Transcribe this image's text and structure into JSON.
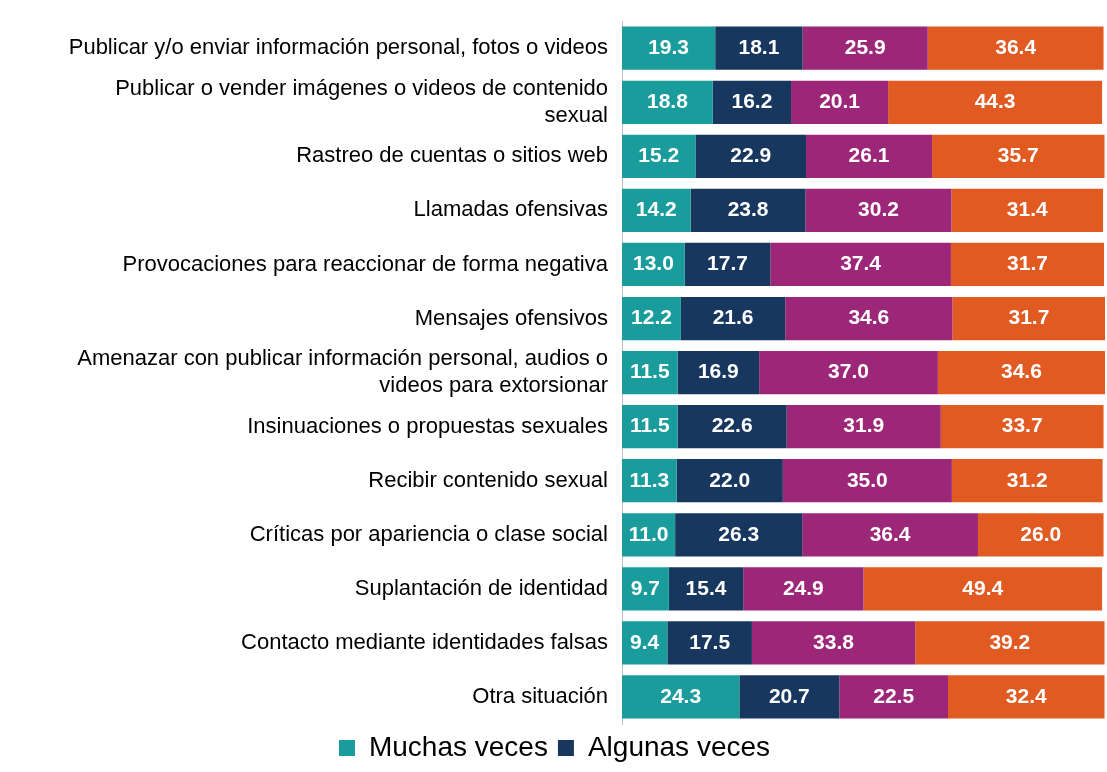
{
  "chart_data": {
    "type": "bar",
    "orientation": "horizontal",
    "stacked": true,
    "legend": "bottom",
    "grid": false,
    "xlim": [
      0,
      100
    ],
    "categories": [
      "Publicar y/o enviar información personal, fotos o videos",
      "Publicar o vender imágenes o videos de contenido sexual",
      "Rastreo de cuentas o sitios web",
      "Llamadas ofensivas",
      "Provocaciones para reaccionar de forma negativa",
      "Mensajes ofensivos",
      "Amenazar con publicar información personal, audios o videos para extorsionar",
      "Insinuaciones o propuestas sexuales",
      "Recibir contenido sexual",
      "Críticas por apariencia o clase social",
      "Suplantación de identidad",
      "Contacto mediante identidades falsas",
      "Otra situación"
    ],
    "series": [
      {
        "name": "Muchas veces",
        "color": "#1a9c9c",
        "values": [
          19.3,
          18.8,
          15.2,
          14.2,
          13.0,
          12.2,
          11.5,
          11.5,
          11.3,
          11.0,
          9.7,
          9.4,
          24.3
        ],
        "value_labels": [
          "19.3",
          "18.8",
          "15.2",
          "14.2",
          "13.0",
          "12.2",
          "11.5",
          "11.5",
          "11.3",
          "11.0",
          "9.7",
          "9.4",
          "24.3"
        ]
      },
      {
        "name": "Algunas veces",
        "color": "#17375e",
        "values": [
          18.1,
          16.2,
          22.9,
          23.8,
          17.7,
          21.6,
          16.9,
          22.6,
          22.0,
          26.3,
          15.4,
          17.5,
          20.7
        ],
        "value_labels": [
          "18.1",
          "16.2",
          "22.9",
          "23.8",
          "17.7",
          "21.6",
          "16.9",
          "22.6",
          "22.0",
          "26.3",
          "15.4",
          "17.5",
          "20.7"
        ]
      },
      {
        "color": "#9c2778",
        "values": [
          25.9,
          20.1,
          26.1,
          30.2,
          37.4,
          34.6,
          37.0,
          31.9,
          35.0,
          36.4,
          24.9,
          33.8,
          22.5
        ],
        "value_labels": [
          "25.9",
          "20.1",
          "26.1",
          "30.2",
          "37.4",
          "34.6",
          "37.0",
          "31.9",
          "35.0",
          "36.4",
          "24.9",
          "33.8",
          "22.5"
        ]
      },
      {
        "color": "#e05a22",
        "values": [
          36.4,
          44.3,
          35.7,
          31.4,
          31.7,
          31.7,
          34.6,
          33.7,
          31.2,
          26.0,
          49.4,
          39.2,
          32.4
        ],
        "value_labels": [
          "36.4",
          "44.3",
          "35.7",
          "31.4",
          "31.7",
          "31.7",
          "34.6",
          "33.7",
          "31.2",
          "26.0",
          "49.4",
          "39.2",
          "32.4"
        ]
      }
    ]
  }
}
